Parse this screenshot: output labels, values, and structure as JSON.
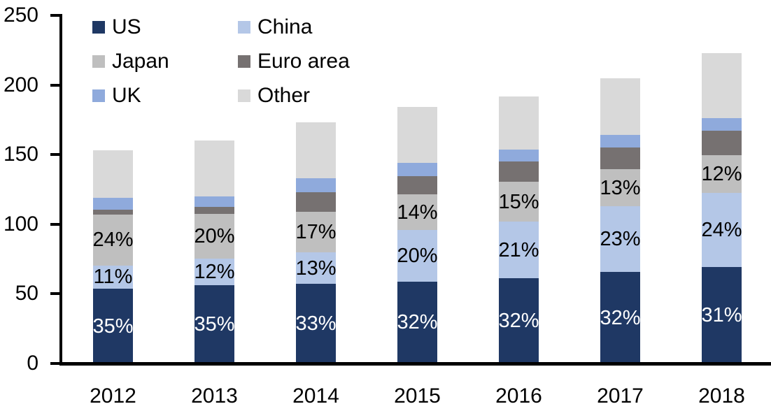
{
  "chart_data": {
    "type": "bar",
    "stacked": true,
    "title": "",
    "xlabel": "",
    "ylabel": "",
    "categories": [
      "2012",
      "2013",
      "2014",
      "2015",
      "2016",
      "2017",
      "2018"
    ],
    "series": [
      {
        "name": "US",
        "color": "#1F3864",
        "values": [
          53.6,
          56.0,
          57.1,
          58.9,
          61.4,
          65.6,
          69.1
        ],
        "pct_labels": [
          "35%",
          "35%",
          "33%",
          "32%",
          "32%",
          "32%",
          "31%"
        ],
        "label_color": "#FFFFFF"
      },
      {
        "name": "China",
        "color": "#B4C7E7",
        "values": [
          16.8,
          19.2,
          22.5,
          36.8,
          40.3,
          47.2,
          53.5
        ],
        "pct_labels": [
          "11%",
          "12%",
          "13%",
          "20%",
          "21%",
          "23%",
          "24%"
        ],
        "label_color": "#000000"
      },
      {
        "name": "Japan",
        "color": "#BFBFBF",
        "values": [
          36.7,
          32.0,
          29.4,
          25.8,
          28.8,
          26.7,
          26.8
        ],
        "pct_labels": [
          "24%",
          "20%",
          "17%",
          "14%",
          "15%",
          "13%",
          "12%"
        ],
        "label_color": "#000000"
      },
      {
        "name": "Euro area",
        "color": "#767171",
        "values": [
          3.5,
          5.0,
          14.0,
          13.0,
          14.5,
          15.5,
          18.0
        ],
        "pct_labels": null,
        "label_color": "#000000"
      },
      {
        "name": "UK",
        "color": "#8FAADC",
        "values": [
          8.5,
          8.0,
          10.0,
          9.5,
          8.5,
          9.0,
          9.0
        ],
        "pct_labels": null,
        "label_color": "#000000"
      },
      {
        "name": "Other",
        "color": "#D9D9D9",
        "values": [
          33.9,
          39.8,
          40.0,
          40.0,
          38.5,
          41.0,
          46.6
        ],
        "pct_labels": null,
        "label_color": "#000000"
      }
    ],
    "stack_totals": [
      153,
      160,
      173,
      184,
      192,
      205,
      223
    ],
    "y_tick_labels": [
      "0",
      "50",
      "100",
      "150",
      "200",
      "250"
    ],
    "y_tick_values": [
      0,
      50,
      100,
      150,
      200,
      250
    ],
    "ylim": [
      0,
      250
    ],
    "grid": false,
    "legend_position": "top-left-two-columns",
    "axis_color": "#000000",
    "background_color": "#FFFFFF"
  }
}
